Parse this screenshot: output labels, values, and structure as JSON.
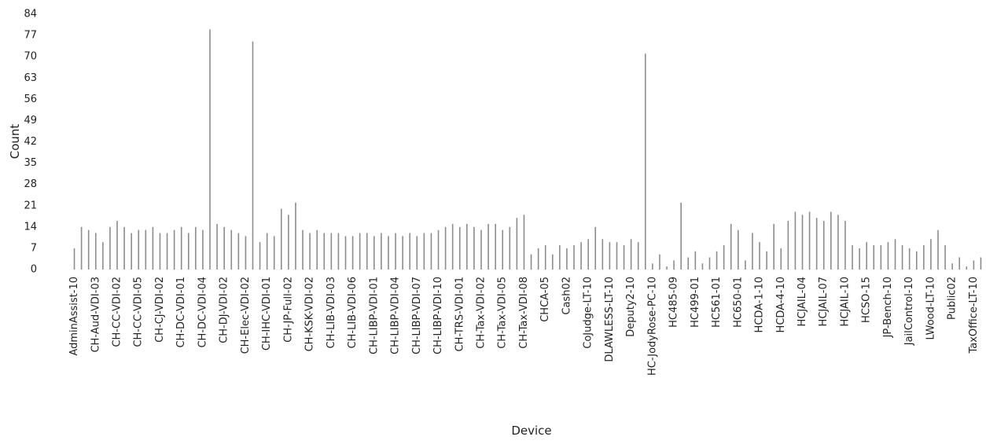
{
  "chart_data": {
    "type": "bar",
    "x_label": "Device",
    "y_label": "Count",
    "categories": [
      "AdminAssist-10",
      null,
      null,
      "CH-Aud-VDI-03",
      null,
      null,
      "CH-CC-VDI-02",
      null,
      null,
      "CH-CC-VDI-05",
      null,
      null,
      "CH-CJ-VDI-02",
      null,
      null,
      "CH-DC-VDI-01",
      null,
      null,
      "CH-DC-VDI-04",
      null,
      null,
      "CH-DJ-VDI-02",
      null,
      null,
      "CH-Elec-VDI-02",
      null,
      null,
      "CH-IHC-VDI-01",
      null,
      null,
      "CH-JP-Full-02",
      null,
      null,
      "CH-KSK-VDI-02",
      null,
      null,
      "CH-LIB-VDI-03",
      null,
      null,
      "CH-LIB-VDI-06",
      null,
      null,
      "CH-LIBP-VDI-01",
      null,
      null,
      "CH-LIBP-VDI-04",
      null,
      null,
      "CH-LIBP-VDI-07",
      null,
      null,
      "CH-LIBP-VDI-10",
      null,
      null,
      "CH-TRS-VDI-01",
      null,
      null,
      "CH-Tax-VDI-02",
      null,
      null,
      "CH-Tax-VDI-05",
      null,
      null,
      "CH-Tax-VDI-08",
      null,
      null,
      "CHCA-05",
      null,
      null,
      "Cash02",
      null,
      null,
      "CoJudge-LT-10",
      null,
      null,
      "DLAWLESS-LT-10",
      null,
      null,
      "Deputy2-10",
      null,
      null,
      "HC-JodyRose-PC-10",
      null,
      null,
      "HC485-09",
      null,
      null,
      "HC499-01",
      null,
      null,
      "HC561-01",
      null,
      null,
      "HC650-01",
      null,
      null,
      "HCDA-1-10",
      null,
      null,
      "HCDA-4-10",
      null,
      null,
      "HCJAIL-04",
      null,
      null,
      "HCJAIL-07",
      null,
      null,
      "HCJAIL-10",
      null,
      null,
      "HCSO-15",
      null,
      null,
      "JP-Bench-10",
      null,
      null,
      "JailControl-10",
      null,
      null,
      "LWood-LT-10",
      null,
      null,
      "Public02",
      null,
      null,
      "TaxOffice-LT-10",
      null
    ],
    "values": [
      7,
      14,
      13,
      12,
      9,
      14,
      16,
      14,
      12,
      13,
      13,
      14,
      12,
      12,
      13,
      14,
      12,
      14,
      13,
      79,
      15,
      14,
      13,
      12,
      11,
      75,
      9,
      12,
      11,
      20,
      18,
      22,
      13,
      12,
      13,
      12,
      12,
      12,
      11,
      11,
      12,
      12,
      11,
      12,
      11,
      12,
      11,
      12,
      11,
      12,
      12,
      13,
      14,
      15,
      14,
      15,
      14,
      13,
      15,
      15,
      13,
      14,
      17,
      18,
      5,
      7,
      8,
      5,
      8,
      7,
      8,
      9,
      10,
      14,
      10,
      9,
      9,
      8,
      10,
      9,
      71,
      2,
      5,
      1,
      3,
      22,
      4,
      6,
      2,
      4,
      6,
      8,
      15,
      13,
      3,
      12,
      9,
      6,
      15,
      7,
      16,
      19,
      18,
      19,
      17,
      16,
      19,
      18,
      16,
      8,
      7,
      9,
      8,
      8,
      9,
      10,
      8,
      7,
      6,
      8,
      10,
      13,
      8,
      2,
      4,
      1,
      3,
      4
    ],
    "color": "#8c8c8c",
    "ylim": [
      0,
      84
    ],
    "yticks": [
      0,
      7,
      14,
      21,
      28,
      35,
      42,
      49,
      56,
      63,
      70,
      77,
      84
    ],
    "grid": false
  }
}
